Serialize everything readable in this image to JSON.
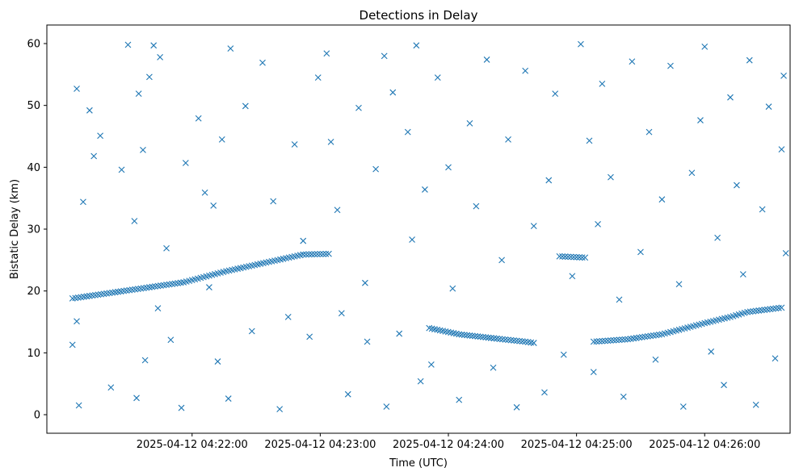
{
  "chart_data": {
    "type": "scatter",
    "title": "Detections in Delay",
    "xlabel": "Time (UTC)",
    "ylabel": "Bistatic Delay (km)",
    "marker": "x",
    "color": "#1f77b4",
    "grid": false,
    "legend": "none",
    "xlim": [
      "2025-04-12 04:20:52",
      "2025-04-12 04:26:40"
    ],
    "ylim": [
      -3,
      63
    ],
    "x_ticks": [
      {
        "value": "2025-04-12 04:22:00",
        "label": "2025-04-12 04:22:00"
      },
      {
        "value": "2025-04-12 04:23:00",
        "label": "2025-04-12 04:23:00"
      },
      {
        "value": "2025-04-12 04:24:00",
        "label": "2025-04-12 04:24:00"
      },
      {
        "value": "2025-04-12 04:25:00",
        "label": "2025-04-12 04:25:00"
      },
      {
        "value": "2025-04-12 04:26:00",
        "label": "2025-04-12 04:26:00"
      }
    ],
    "y_ticks": [
      0,
      10,
      20,
      30,
      40,
      50,
      60
    ],
    "tracks": [
      {
        "name": "",
        "points": [
          [
            "2025-04-12 04:21:04",
            18.8
          ],
          [
            "2025-04-12 04:21:20",
            19.6
          ],
          [
            "2025-04-12 04:21:36",
            20.4
          ],
          [
            "2025-04-12 04:21:56",
            21.4
          ],
          [
            "2025-04-12 04:22:16",
            23.2
          ],
          [
            "2025-04-12 04:22:32",
            24.4
          ],
          [
            "2025-04-12 04:22:52",
            25.9
          ],
          [
            "2025-04-12 04:23:04",
            26.0
          ]
        ]
      },
      {
        "name": "",
        "points": [
          [
            "2025-04-12 04:23:51",
            14.0
          ],
          [
            "2025-04-12 04:24:05",
            13.0
          ],
          [
            "2025-04-12 04:24:20",
            12.4
          ],
          [
            "2025-04-12 04:24:36",
            11.8
          ],
          [
            "2025-04-12 04:24:40",
            11.6
          ]
        ]
      },
      {
        "name": "",
        "points": [
          [
            "2025-04-12 04:24:52",
            25.6
          ],
          [
            "2025-04-12 04:25:04",
            25.4
          ]
        ]
      },
      {
        "name": "",
        "points": [
          [
            "2025-04-12 04:25:08",
            11.8
          ],
          [
            "2025-04-12 04:25:24",
            12.2
          ],
          [
            "2025-04-12 04:25:40",
            13.0
          ],
          [
            "2025-04-12 04:26:00",
            14.8
          ],
          [
            "2025-04-12 04:26:12",
            15.8
          ],
          [
            "2025-04-12 04:26:20",
            16.6
          ],
          [
            "2025-04-12 04:26:36",
            17.3
          ]
        ]
      }
    ],
    "scatter_points": [
      [
        "2025-04-12 04:21:06",
        52.7
      ],
      [
        "2025-04-12 04:21:12",
        49.2
      ],
      [
        "2025-04-12 04:21:09",
        34.4
      ],
      [
        "2025-04-12 04:21:14",
        41.8
      ],
      [
        "2025-04-12 04:21:06",
        15.1
      ],
      [
        "2025-04-12 04:21:04",
        11.3
      ],
      [
        "2025-04-12 04:21:07",
        1.5
      ],
      [
        "2025-04-12 04:21:17",
        45.1
      ],
      [
        "2025-04-12 04:21:27",
        39.6
      ],
      [
        "2025-04-12 04:21:30",
        59.8
      ],
      [
        "2025-04-12 04:21:35",
        51.9
      ],
      [
        "2025-04-12 04:21:37",
        42.8
      ],
      [
        "2025-04-12 04:21:40",
        54.6
      ],
      [
        "2025-04-12 04:21:42",
        59.7
      ],
      [
        "2025-04-12 04:21:45",
        57.8
      ],
      [
        "2025-04-12 04:21:33",
        31.3
      ],
      [
        "2025-04-12 04:21:22",
        4.4
      ],
      [
        "2025-04-12 04:21:34",
        2.7
      ],
      [
        "2025-04-12 04:21:38",
        8.8
      ],
      [
        "2025-04-12 04:21:44",
        17.2
      ],
      [
        "2025-04-12 04:21:50",
        12.1
      ],
      [
        "2025-04-12 04:21:55",
        1.1
      ],
      [
        "2025-04-12 04:21:57",
        40.7
      ],
      [
        "2025-04-12 04:22:03",
        47.9
      ],
      [
        "2025-04-12 04:22:06",
        35.9
      ],
      [
        "2025-04-12 04:22:10",
        33.8
      ],
      [
        "2025-04-12 04:22:14",
        44.5
      ],
      [
        "2025-04-12 04:22:18",
        59.2
      ],
      [
        "2025-04-12 04:22:12",
        8.6
      ],
      [
        "2025-04-12 04:22:17",
        2.6
      ],
      [
        "2025-04-12 04:22:25",
        49.9
      ],
      [
        "2025-04-12 04:22:28",
        13.5
      ],
      [
        "2025-04-12 04:22:33",
        56.9
      ],
      [
        "2025-04-12 04:22:38",
        34.5
      ],
      [
        "2025-04-12 04:22:41",
        0.9
      ],
      [
        "2025-04-12 04:22:48",
        43.7
      ],
      [
        "2025-04-12 04:22:52",
        28.1
      ],
      [
        "2025-04-12 04:22:55",
        12.6
      ],
      [
        "2025-04-12 04:22:59",
        54.5
      ],
      [
        "2025-04-12 04:23:03",
        58.4
      ],
      [
        "2025-04-12 04:23:05",
        44.1
      ],
      [
        "2025-04-12 04:23:08",
        33.1
      ],
      [
        "2025-04-12 04:23:10",
        16.4
      ],
      [
        "2025-04-12 04:23:13",
        3.3
      ],
      [
        "2025-04-12 04:23:18",
        49.6
      ],
      [
        "2025-04-12 04:23:21",
        21.3
      ],
      [
        "2025-04-12 04:23:26",
        39.7
      ],
      [
        "2025-04-12 04:23:30",
        58.0
      ],
      [
        "2025-04-12 04:23:31",
        1.3
      ],
      [
        "2025-04-12 04:23:34",
        52.1
      ],
      [
        "2025-04-12 04:23:37",
        13.1
      ],
      [
        "2025-04-12 04:23:41",
        45.7
      ],
      [
        "2025-04-12 04:23:43",
        28.3
      ],
      [
        "2025-04-12 04:23:45",
        59.7
      ],
      [
        "2025-04-12 04:23:47",
        5.4
      ],
      [
        "2025-04-12 04:23:49",
        36.4
      ],
      [
        "2025-04-12 04:23:52",
        8.1
      ],
      [
        "2025-04-12 04:23:55",
        54.5
      ],
      [
        "2025-04-12 04:24:00",
        40.0
      ],
      [
        "2025-04-12 04:24:02",
        20.4
      ],
      [
        "2025-04-12 04:24:05",
        2.4
      ],
      [
        "2025-04-12 04:24:10",
        47.1
      ],
      [
        "2025-04-12 04:24:13",
        33.7
      ],
      [
        "2025-04-12 04:24:18",
        57.4
      ],
      [
        "2025-04-12 04:24:21",
        7.6
      ],
      [
        "2025-04-12 04:24:25",
        25.0
      ],
      [
        "2025-04-12 04:24:28",
        44.5
      ],
      [
        "2025-04-12 04:24:32",
        1.2
      ],
      [
        "2025-04-12 04:24:36",
        55.6
      ],
      [
        "2025-04-12 04:24:40",
        30.5
      ],
      [
        "2025-04-12 04:24:45",
        3.6
      ],
      [
        "2025-04-12 04:24:47",
        37.9
      ],
      [
        "2025-04-12 04:24:50",
        51.9
      ],
      [
        "2025-04-12 04:24:54",
        9.7
      ],
      [
        "2025-04-12 04:24:58",
        22.4
      ],
      [
        "2025-04-12 04:25:02",
        59.9
      ],
      [
        "2025-04-12 04:25:06",
        44.3
      ],
      [
        "2025-04-12 04:25:08",
        6.9
      ],
      [
        "2025-04-12 04:25:10",
        30.8
      ],
      [
        "2025-04-12 04:25:12",
        53.5
      ],
      [
        "2025-04-12 04:25:16",
        38.4
      ],
      [
        "2025-04-12 04:25:20",
        18.6
      ],
      [
        "2025-04-12 04:25:22",
        2.9
      ],
      [
        "2025-04-12 04:25:26",
        57.1
      ],
      [
        "2025-04-12 04:25:30",
        26.3
      ],
      [
        "2025-04-12 04:25:34",
        45.7
      ],
      [
        "2025-04-12 04:25:37",
        8.9
      ],
      [
        "2025-04-12 04:25:40",
        34.8
      ],
      [
        "2025-04-12 04:25:44",
        56.4
      ],
      [
        "2025-04-12 04:25:48",
        21.1
      ],
      [
        "2025-04-12 04:25:50",
        1.3
      ],
      [
        "2025-04-12 04:25:54",
        39.1
      ],
      [
        "2025-04-12 04:25:58",
        47.6
      ],
      [
        "2025-04-12 04:26:00",
        59.5
      ],
      [
        "2025-04-12 04:26:03",
        10.2
      ],
      [
        "2025-04-12 04:26:06",
        28.6
      ],
      [
        "2025-04-12 04:26:09",
        4.8
      ],
      [
        "2025-04-12 04:26:12",
        51.3
      ],
      [
        "2025-04-12 04:26:15",
        37.1
      ],
      [
        "2025-04-12 04:26:18",
        22.7
      ],
      [
        "2025-04-12 04:26:21",
        57.3
      ],
      [
        "2025-04-12 04:26:24",
        1.6
      ],
      [
        "2025-04-12 04:26:27",
        33.2
      ],
      [
        "2025-04-12 04:26:30",
        49.8
      ],
      [
        "2025-04-12 04:26:33",
        9.1
      ],
      [
        "2025-04-12 04:26:36",
        42.9
      ],
      [
        "2025-04-12 04:26:37",
        54.8
      ],
      [
        "2025-04-12 04:26:38",
        26.1
      ],
      [
        "2025-04-12 04:22:45",
        15.8
      ],
      [
        "2025-04-12 04:22:08",
        20.6
      ],
      [
        "2025-04-12 04:21:48",
        26.9
      ],
      [
        "2025-04-12 04:23:22",
        11.8
      ]
    ],
    "scatter_note": "Dense random background detections across the full range (0–60 km); scatter_points is a representative sample."
  }
}
